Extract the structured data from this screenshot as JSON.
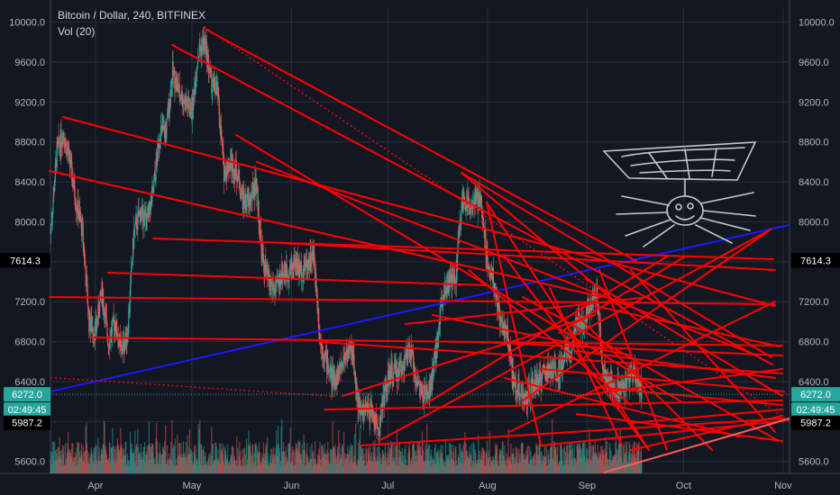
{
  "header": {
    "title": "Bitcoin / Dollar, 240, BITFINEX",
    "indicator": "Vol (20)"
  },
  "badges": {
    "price_marker": {
      "value": 7614.3,
      "label": "7614.3",
      "bg": "#000000",
      "fg": "#ffffff"
    },
    "last_price": {
      "value": 6272.0,
      "label": "6272.0",
      "bg": "#26a69a",
      "fg": "#ffffff"
    },
    "countdown": {
      "label": "02:49:45",
      "bg": "#26a69a",
      "fg": "#ffffff"
    },
    "low_marker": {
      "value": 5987.2,
      "label": "5987.2",
      "bg": "#000000",
      "fg": "#ffffff"
    }
  },
  "colors": {
    "background": "#131722",
    "grid": "#2a2e39",
    "up": "#26a69a",
    "down": "#ef5350",
    "drawing": "#ff0000",
    "trend_blue": "#1a1aff",
    "sketch": "#c8c8c8"
  },
  "chart_data": {
    "type": "candlestick",
    "symbol": "Bitcoin / Dollar",
    "interval": "240",
    "exchange": "BITFINEX",
    "x_range": [
      "2018-03-18",
      "2018-11-03"
    ],
    "y_range": [
      5480,
      10150
    ],
    "y_ticks": [
      5600,
      6000,
      6400,
      6800,
      7200,
      7600,
      8000,
      8400,
      8800,
      9200,
      9600,
      10000
    ],
    "y_tick_labels": [
      "5600.0",
      "6000.0",
      "6400.0",
      "6800.0",
      "7200.0",
      "7600.0",
      "8000.0",
      "8400.0",
      "8800.0",
      "9200.0",
      "9600.0",
      "10000.0"
    ],
    "x_ticks": [
      {
        "date": "2018-04-01",
        "label": "Apr"
      },
      {
        "date": "2018-05-01",
        "label": "May"
      },
      {
        "date": "2018-06-01",
        "label": "Jun"
      },
      {
        "date": "2018-07-01",
        "label": "Jul"
      },
      {
        "date": "2018-08-01",
        "label": "Aug"
      },
      {
        "date": "2018-09-01",
        "label": "Sep"
      },
      {
        "date": "2018-10-01",
        "label": "Oct"
      },
      {
        "date": "2018-11-01",
        "label": "Nov"
      }
    ],
    "grid": true,
    "price_path": [
      [
        "2018-03-18",
        7900
      ],
      [
        "2018-03-20",
        8700
      ],
      [
        "2018-03-22",
        8900
      ],
      [
        "2018-03-24",
        8600
      ],
      [
        "2018-03-26",
        8200
      ],
      [
        "2018-03-28",
        7900
      ],
      [
        "2018-03-30",
        7000
      ],
      [
        "2018-04-01",
        6900
      ],
      [
        "2018-04-03",
        7300
      ],
      [
        "2018-04-05",
        6800
      ],
      [
        "2018-04-07",
        7000
      ],
      [
        "2018-04-09",
        6700
      ],
      [
        "2018-04-11",
        6900
      ],
      [
        "2018-04-13",
        7900
      ],
      [
        "2018-04-15",
        8100
      ],
      [
        "2018-04-17",
        8000
      ],
      [
        "2018-04-19",
        8300
      ],
      [
        "2018-04-21",
        8900
      ],
      [
        "2018-04-23",
        8900
      ],
      [
        "2018-04-25",
        9500
      ],
      [
        "2018-04-27",
        9300
      ],
      [
        "2018-04-29",
        9200
      ],
      [
        "2018-05-01",
        9100
      ],
      [
        "2018-05-03",
        9700
      ],
      [
        "2018-05-05",
        9800
      ],
      [
        "2018-05-07",
        9400
      ],
      [
        "2018-05-09",
        9300
      ],
      [
        "2018-05-11",
        8500
      ],
      [
        "2018-05-13",
        8600
      ],
      [
        "2018-05-15",
        8500
      ],
      [
        "2018-05-17",
        8200
      ],
      [
        "2018-05-19",
        8200
      ],
      [
        "2018-05-21",
        8400
      ],
      [
        "2018-05-23",
        7600
      ],
      [
        "2018-05-25",
        7400
      ],
      [
        "2018-05-27",
        7300
      ],
      [
        "2018-05-29",
        7500
      ],
      [
        "2018-05-31",
        7500
      ],
      [
        "2018-06-02",
        7600
      ],
      [
        "2018-06-04",
        7500
      ],
      [
        "2018-06-06",
        7600
      ],
      [
        "2018-06-08",
        7650
      ],
      [
        "2018-06-10",
        6800
      ],
      [
        "2018-06-12",
        6600
      ],
      [
        "2018-06-14",
        6400
      ],
      [
        "2018-06-16",
        6500
      ],
      [
        "2018-06-18",
        6700
      ],
      [
        "2018-06-20",
        6700
      ],
      [
        "2018-06-22",
        6100
      ],
      [
        "2018-06-24",
        6100
      ],
      [
        "2018-06-26",
        6100
      ],
      [
        "2018-06-28",
        5900
      ],
      [
        "2018-06-30",
        6300
      ],
      [
        "2018-07-02",
        6500
      ],
      [
        "2018-07-04",
        6500
      ],
      [
        "2018-07-06",
        6600
      ],
      [
        "2018-07-08",
        6700
      ],
      [
        "2018-07-10",
        6400
      ],
      [
        "2018-07-12",
        6250
      ],
      [
        "2018-07-14",
        6300
      ],
      [
        "2018-07-16",
        6700
      ],
      [
        "2018-07-18",
        7300
      ],
      [
        "2018-07-20",
        7400
      ],
      [
        "2018-07-22",
        7400
      ],
      [
        "2018-07-24",
        8200
      ],
      [
        "2018-07-26",
        8200
      ],
      [
        "2018-07-28",
        8200
      ],
      [
        "2018-07-30",
        8200
      ],
      [
        "2018-08-01",
        7600
      ],
      [
        "2018-08-03",
        7400
      ],
      [
        "2018-08-05",
        7000
      ],
      [
        "2018-08-07",
        6900
      ],
      [
        "2018-08-09",
        6400
      ],
      [
        "2018-08-11",
        6300
      ],
      [
        "2018-08-13",
        6200
      ],
      [
        "2018-08-15",
        6350
      ],
      [
        "2018-08-17",
        6400
      ],
      [
        "2018-08-19",
        6500
      ],
      [
        "2018-08-21",
        6500
      ],
      [
        "2018-08-23",
        6500
      ],
      [
        "2018-08-25",
        6700
      ],
      [
        "2018-08-27",
        6700
      ],
      [
        "2018-08-29",
        7000
      ],
      [
        "2018-08-31",
        7000
      ],
      [
        "2018-09-02",
        7200
      ],
      [
        "2018-09-04",
        7300
      ],
      [
        "2018-09-06",
        6500
      ],
      [
        "2018-09-08",
        6400
      ],
      [
        "2018-09-10",
        6300
      ],
      [
        "2018-09-12",
        6300
      ],
      [
        "2018-09-14",
        6450
      ],
      [
        "2018-09-16",
        6500
      ],
      [
        "2018-09-18",
        6300
      ]
    ],
    "blue_trendline": [
      [
        "2018-03-18",
        6300
      ],
      [
        "2018-11-03",
        7970
      ]
    ],
    "red_dotted_lines": [
      [
        [
          "2018-05-05",
          9950
        ],
        [
          "2018-11-03",
          6000
        ]
      ],
      [
        [
          "2018-03-18",
          6440
        ],
        [
          "2018-06-15",
          6250
        ]
      ]
    ]
  }
}
